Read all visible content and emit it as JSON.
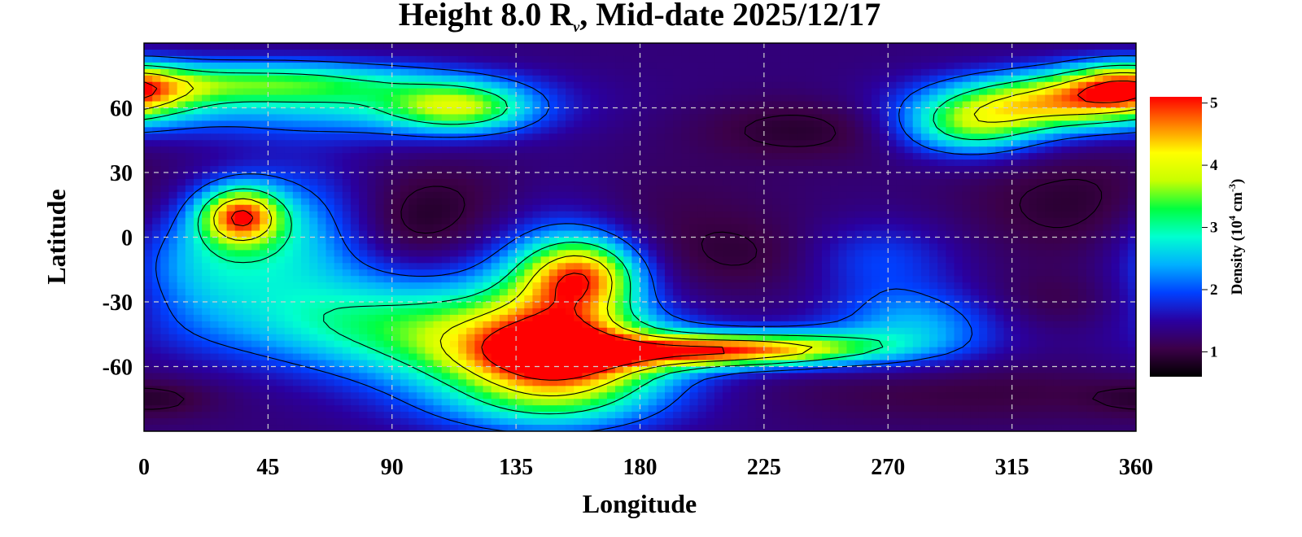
{
  "chart_data": {
    "type": "heatmap",
    "title": {
      "prefix": "Height 8.0 R",
      "subscript": "ν",
      "suffix": ", Mid-date 2025/12/17"
    },
    "xlabel": "Longitude",
    "ylabel": "Latitude",
    "xlim": [
      0,
      360
    ],
    "ylim": [
      -90,
      90
    ],
    "x_ticks": [
      0,
      45,
      90,
      135,
      180,
      225,
      270,
      315,
      360
    ],
    "y_ticks": [
      60,
      30,
      0,
      -30,
      -60
    ],
    "x_tick_labels": [
      "0",
      "45",
      "90",
      "135",
      "180",
      "225",
      "270",
      "315",
      "360"
    ],
    "y_tick_labels": [
      "60",
      "30",
      "0",
      "-30",
      "-60"
    ],
    "grid": true,
    "grid_style": "dashed",
    "colorbar": {
      "label": {
        "prefix": "Density (10",
        "exp1": "4",
        "middle": " cm",
        "exp2": "-3",
        "suffix": ")"
      },
      "range": [
        0.6,
        5.1
      ],
      "ticks": [
        1,
        2,
        3,
        4,
        5
      ],
      "tick_labels": [
        "1",
        "2",
        "3",
        "4",
        "5"
      ],
      "colors": [
        "#000000",
        "#3c0048",
        "#2a00a0",
        "#0040ff",
        "#00b0ff",
        "#00ffd0",
        "#00ff40",
        "#c8ff00",
        "#ffff00",
        "#ff8000",
        "#ff0000"
      ]
    },
    "background_value": 1.3,
    "features": [
      {
        "lon": 35,
        "lat": 10,
        "value": 4.1,
        "sx": 10,
        "sy": 9
      },
      {
        "lon": 55,
        "lat": 0,
        "value": 2.6,
        "sx": 22,
        "sy": 22
      },
      {
        "lon": 20,
        "lat": -10,
        "value": 2.3,
        "sx": 18,
        "sy": 20
      },
      {
        "lon": 80,
        "lat": -40,
        "value": 2.5,
        "sx": 45,
        "sy": 15
      },
      {
        "lon": 120,
        "lat": -50,
        "value": 2.5,
        "sx": 35,
        "sy": 20
      },
      {
        "lon": 155,
        "lat": -55,
        "value": 4.3,
        "sx": 28,
        "sy": 12
      },
      {
        "lon": 160,
        "lat": -18,
        "value": 3.7,
        "sx": 14,
        "sy": 12
      },
      {
        "lon": 148,
        "lat": -30,
        "value": 2.8,
        "sx": 18,
        "sy": 26
      },
      {
        "lon": 205,
        "lat": -53,
        "value": 3.6,
        "sx": 30,
        "sy": 5
      },
      {
        "lon": 235,
        "lat": -51,
        "value": 2.9,
        "sx": 30,
        "sy": 6
      },
      {
        "lon": 150,
        "lat": -78,
        "value": 2.4,
        "sx": 30,
        "sy": 10
      },
      {
        "lon": 40,
        "lat": 72,
        "value": 3.0,
        "sx": 45,
        "sy": 7
      },
      {
        "lon": 115,
        "lat": 60,
        "value": 3.1,
        "sx": 18,
        "sy": 8
      },
      {
        "lon": 75,
        "lat": 60,
        "value": 2.4,
        "sx": 45,
        "sy": 10
      },
      {
        "lon": 330,
        "lat": 62,
        "value": 4.0,
        "sx": 30,
        "sy": 9
      },
      {
        "lon": 300,
        "lat": 50,
        "value": 3.0,
        "sx": 18,
        "sy": 9
      },
      {
        "lon": 355,
        "lat": 70,
        "value": 3.0,
        "sx": 14,
        "sy": 8
      },
      {
        "lon": 280,
        "lat": -40,
        "value": 2.4,
        "sx": 22,
        "sy": 12
      },
      {
        "lon": 265,
        "lat": -10,
        "value": 2.0,
        "sx": 20,
        "sy": 12
      },
      {
        "lon": 100,
        "lat": 15,
        "value": 0.9,
        "sx": 28,
        "sy": 15
      },
      {
        "lon": 90,
        "lat": 0,
        "value": 1.0,
        "sx": 20,
        "sy": 12
      },
      {
        "lon": 340,
        "lat": 15,
        "value": 0.9,
        "sx": 30,
        "sy": 18
      },
      {
        "lon": 330,
        "lat": -30,
        "value": 1.0,
        "sx": 25,
        "sy": 10
      },
      {
        "lon": 240,
        "lat": 50,
        "value": 0.9,
        "sx": 28,
        "sy": 10
      },
      {
        "lon": 225,
        "lat": -10,
        "value": 1.0,
        "sx": 28,
        "sy": 12
      },
      {
        "lon": 300,
        "lat": -72,
        "value": 1.0,
        "sx": 50,
        "sy": 10
      },
      {
        "lon": 195,
        "lat": 10,
        "value": 1.1,
        "sx": 30,
        "sy": 18
      },
      {
        "lon": 5,
        "lat": -75,
        "value": 1.0,
        "sx": 15,
        "sy": 6
      }
    ]
  }
}
